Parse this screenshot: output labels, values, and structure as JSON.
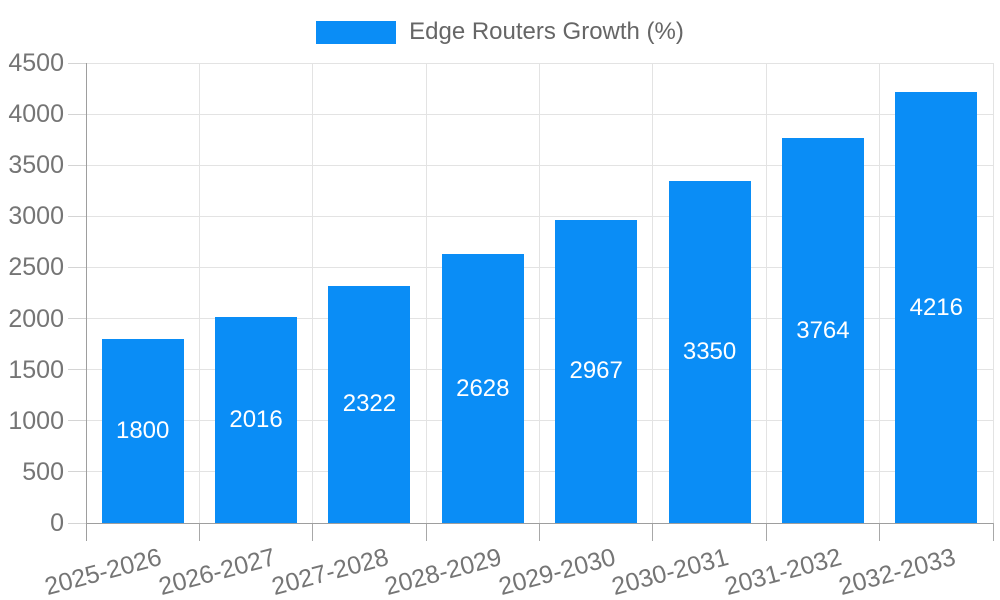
{
  "chart_data": {
    "type": "bar",
    "title": "",
    "legend": {
      "label": "Edge Routers Growth (%)",
      "position": "top-center"
    },
    "categories": [
      "2025-2026",
      "2026-2027",
      "2027-2028",
      "2028-2029",
      "2029-2030",
      "2030-2031",
      "2031-2032",
      "2032-2033"
    ],
    "series": [
      {
        "name": "Edge Routers Growth (%)",
        "values": [
          1800,
          2016,
          2322,
          2628,
          2967,
          3350,
          3764,
          4216
        ]
      }
    ],
    "value_labels_shown": true,
    "xlabel": "",
    "ylabel": "",
    "ylim": [
      0,
      4500
    ],
    "ytick_step": 500,
    "yticks": [
      "0",
      "500",
      "1000",
      "1500",
      "2000",
      "2500",
      "3000",
      "3500",
      "4000",
      "4500"
    ],
    "grid": true,
    "x_label_rotation_deg": -15,
    "colors": {
      "bar": "#0a8df6",
      "bar_value_text": "#ffffff",
      "axis_text": "#757575",
      "legend_text": "#666666",
      "gridline": "#e3e3e3",
      "axis_line": "#9e9e9e",
      "y_tick": "#d4d4d4",
      "x_tick": "#a8a8a8",
      "background": "#ffffff"
    }
  }
}
